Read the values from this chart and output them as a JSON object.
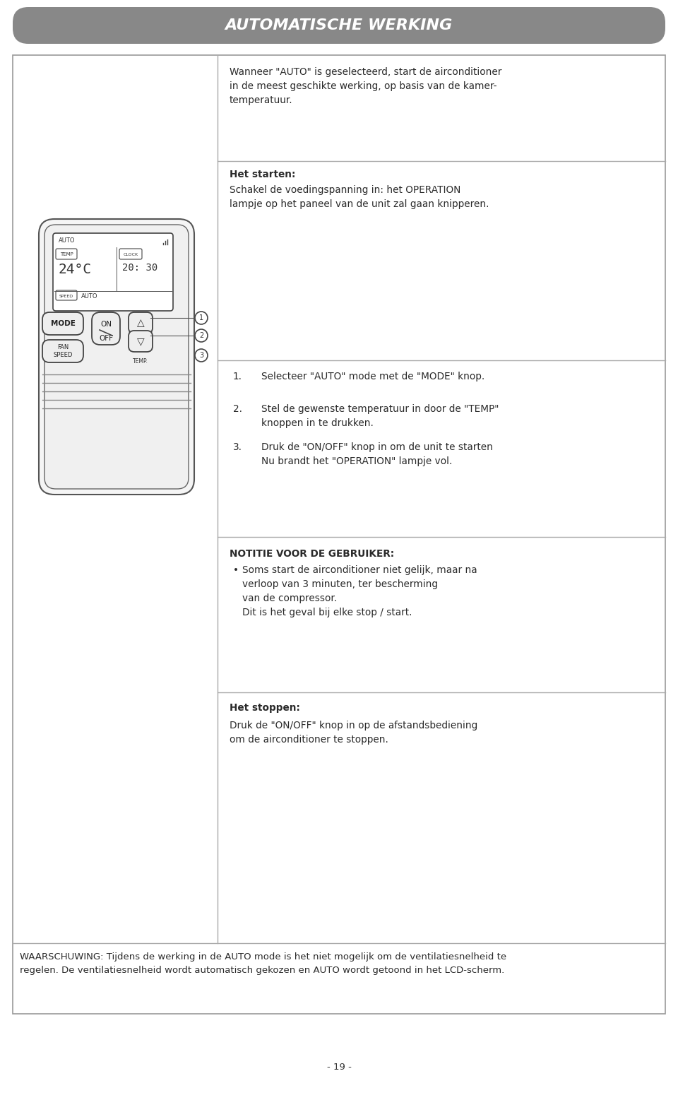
{
  "title": "AUTOMATISCHE WERKING",
  "title_bg": "#888888",
  "title_color": "#ffffff",
  "page_number": "- 19 -",
  "bg_color": "#ffffff",
  "outer_border_color": "#999999",
  "divider_color": "#aaaaaa",
  "section1_text": "Wanneer \"AUTO\" is geselecteerd, start de airconditioner\nin de meest geschikte werking, op basis van de kamer-\ntemperatuur.",
  "section2_title": "Het starten:",
  "section2_body": "Schakel de voedingspanning in: het OPERATION\nlampje op het paneel van de unit zal gaan knipperen.",
  "step1_num": "1.",
  "step1_text": "Selecteer \"AUTO\" mode met de \"MODE\" knop.",
  "step2_num": "2.",
  "step2_text": "Stel de gewenste temperatuur in door de \"TEMP\"\nknoppen in te drukken.",
  "step3_num": "3.",
  "step3_text": "Druk de \"ON/OFF\" knop in om de unit te starten\nNu brandt het \"OPERATION\" lampje vol.",
  "notitie_title": "NOTITIE VOOR DE GEBRUIKER:",
  "notitie_bullet": "Soms start de airconditioner niet gelijk, maar na\nverloop van 3 minuten, ter bescherming\nvan de compressor.\nDit is het geval bij elke stop / start.",
  "stoppen_title": "Het stoppen:",
  "stoppen_text": "Druk de \"ON/OFF\" knop in op de afstandsbediening\nom de airconditioner te stoppen.",
  "warning_text": "WAARSCHUWING: Tijdens de werking in de AUTO mode is het niet mogelijk om de ventilatiesnelheid te\nregelen. De ventilatiesnelheid wordt automatisch gekozen en AUTO wordt getoond in het LCD-scherm."
}
